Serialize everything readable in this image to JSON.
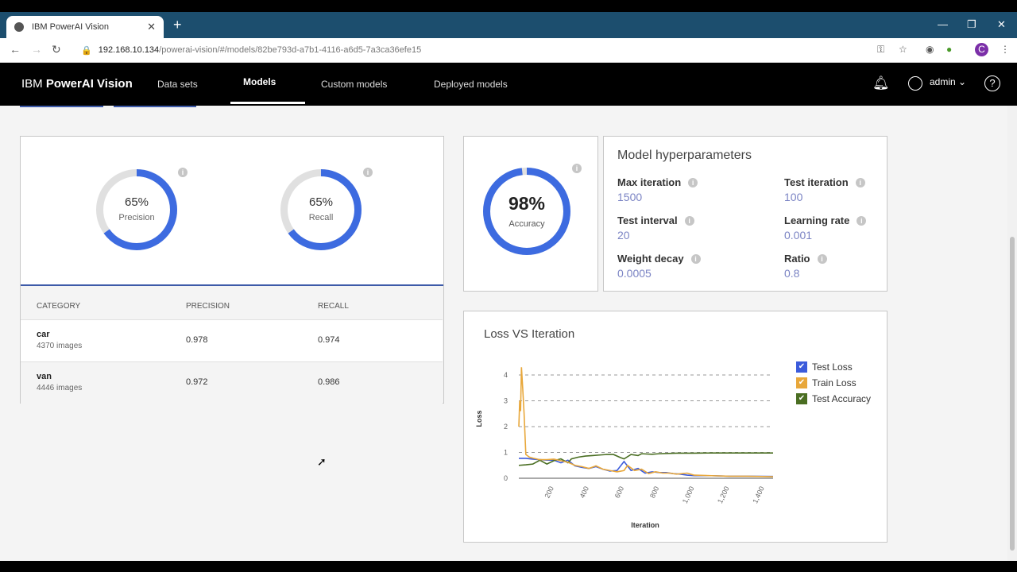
{
  "browser": {
    "tab_title": "IBM PowerAI Vision",
    "url_host": "192.168.10.134",
    "url_path": "/powerai-vision/#/models/82be793d-a7b1-4116-a6d5-7a3ca36efe15",
    "profile_initial": "C"
  },
  "app": {
    "brand_prefix": "IBM",
    "brand_name": "PowerAI Vision",
    "nav": [
      "Data sets",
      "Models",
      "Custom models",
      "Deployed models"
    ],
    "user": "admin"
  },
  "metrics": {
    "precision": {
      "value": 65,
      "label": "Precision",
      "text": "65%"
    },
    "recall": {
      "value": 65,
      "label": "Recall",
      "text": "65%"
    },
    "accuracy": {
      "value": 98,
      "label": "Accuracy",
      "text": "98%"
    }
  },
  "table": {
    "headers": [
      "CATEGORY",
      "PRECISION",
      "RECALL"
    ],
    "rows": [
      {
        "category": "car",
        "images": "4370 images",
        "precision": "0.978",
        "recall": "0.974"
      },
      {
        "category": "van",
        "images": "4446 images",
        "precision": "0.972",
        "recall": "0.986"
      }
    ]
  },
  "hyperparameters": {
    "title": "Model hyperparameters",
    "items": [
      {
        "label": "Max iteration",
        "value": "1500"
      },
      {
        "label": "Test iteration",
        "value": "100"
      },
      {
        "label": "Test interval",
        "value": "20"
      },
      {
        "label": "Learning rate",
        "value": "0.001"
      },
      {
        "label": "Weight decay",
        "value": "0.0005"
      },
      {
        "label": "Ratio",
        "value": "0.8"
      }
    ]
  },
  "colors": {
    "accent": "#3d6be0",
    "test_loss": "#3b5bdb",
    "train_loss": "#e8a73a",
    "test_accuracy": "#4a6e22"
  },
  "chart_data": {
    "type": "line",
    "title": "Loss VS Iteration",
    "xlabel": "Iteration",
    "ylabel": "Loss",
    "ylim": [
      0,
      4.3
    ],
    "xlim": [
      0,
      1450
    ],
    "yticks": [
      "0",
      "1",
      "2",
      "3",
      "4"
    ],
    "xticks": [
      "200",
      "400",
      "600",
      "800",
      "1,000",
      "1,200",
      "1,400"
    ],
    "series": [
      {
        "name": "Test Loss",
        "x": [
          0,
          40,
          80,
          120,
          160,
          200,
          240,
          280,
          320,
          360,
          400,
          440,
          480,
          520,
          560,
          600,
          640,
          680,
          720,
          760,
          800,
          840,
          880,
          920,
          960,
          1000,
          1100,
          1200,
          1300,
          1450
        ],
        "values": [
          0.77,
          0.77,
          0.74,
          0.72,
          0.7,
          0.7,
          0.6,
          0.7,
          0.48,
          0.42,
          0.38,
          0.45,
          0.35,
          0.28,
          0.3,
          0.65,
          0.3,
          0.38,
          0.2,
          0.25,
          0.22,
          0.22,
          0.18,
          0.16,
          0.12,
          0.1,
          0.1,
          0.08,
          0.08,
          0.07
        ]
      },
      {
        "name": "Train Loss",
        "x": [
          0,
          5,
          10,
          15,
          22,
          30,
          40,
          60,
          80,
          120,
          160,
          200,
          240,
          280,
          320,
          360,
          400,
          440,
          480,
          520,
          560,
          600,
          620,
          660,
          700,
          740,
          780,
          820,
          860,
          900,
          960,
          1000,
          1100,
          1200,
          1300,
          1450
        ],
        "values": [
          2.0,
          3.0,
          2.6,
          4.3,
          3.5,
          2.5,
          0.92,
          0.82,
          0.78,
          0.72,
          0.72,
          0.74,
          0.68,
          0.62,
          0.5,
          0.45,
          0.38,
          0.48,
          0.35,
          0.3,
          0.25,
          0.3,
          0.5,
          0.3,
          0.35,
          0.18,
          0.25,
          0.2,
          0.2,
          0.16,
          0.2,
          0.12,
          0.1,
          0.08,
          0.08,
          0.06
        ]
      },
      {
        "name": "Test Accuracy",
        "x": [
          0,
          40,
          80,
          120,
          160,
          200,
          240,
          280,
          300,
          340,
          380,
          420,
          460,
          500,
          540,
          580,
          600,
          640,
          680,
          700,
          760,
          800,
          900,
          1000,
          1100,
          1200,
          1300,
          1450
        ],
        "values": [
          0.5,
          0.52,
          0.55,
          0.7,
          0.55,
          0.68,
          0.75,
          0.6,
          0.75,
          0.82,
          0.86,
          0.88,
          0.9,
          0.92,
          0.92,
          0.8,
          0.75,
          0.92,
          0.88,
          0.95,
          0.93,
          0.95,
          0.97,
          0.97,
          0.98,
          0.98,
          0.98,
          0.98
        ]
      }
    ]
  }
}
